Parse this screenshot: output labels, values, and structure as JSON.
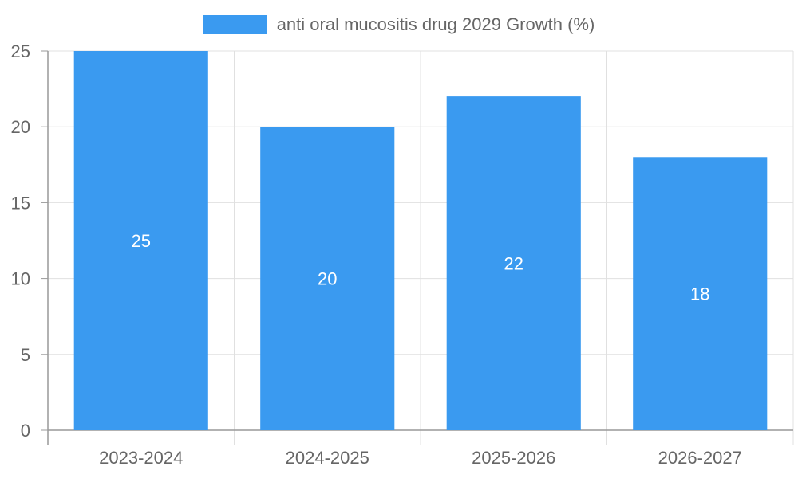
{
  "chart_data": {
    "type": "bar",
    "categories": [
      "2023-2024",
      "2024-2025",
      "2025-2026",
      "2026-2027"
    ],
    "series": [
      {
        "name": "anti oral mucositis drug 2029 Growth (%)",
        "values": [
          25,
          20,
          22,
          18
        ]
      }
    ],
    "ylim": [
      0,
      25
    ],
    "yticks": [
      0,
      5,
      10,
      15,
      20,
      25
    ],
    "grid": true,
    "legend": "top-center",
    "data_labels": true,
    "colors": {
      "bar": "#3a9af0",
      "grid": "#e0e0e0",
      "axis": "#999999",
      "tick_text": "#666666",
      "label_text": "#ffffff"
    }
  }
}
